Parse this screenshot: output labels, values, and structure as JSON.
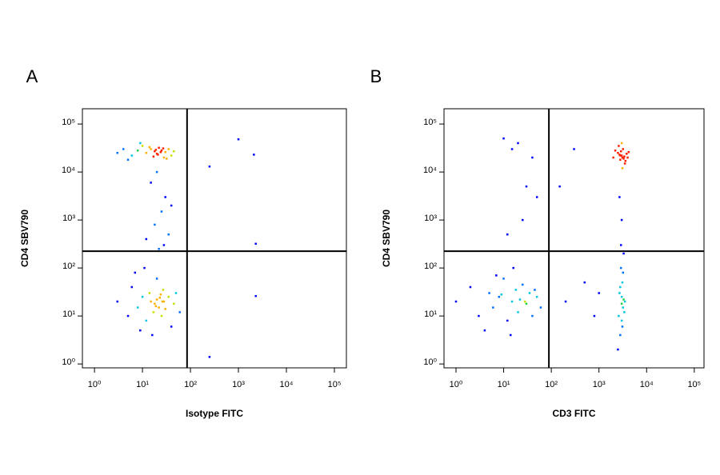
{
  "chart_data": [
    {
      "type": "scatter",
      "label": "A",
      "x_label": "Isotype FITC",
      "y_label": "CD4 SBV790",
      "log_x": true,
      "log_y": true,
      "xlim": [
        0.56,
        178000
      ],
      "ylim": [
        0.83,
        208000
      ],
      "xticks": [
        {
          "value": 1,
          "label": "10⁰"
        },
        {
          "value": 10,
          "label": "10¹"
        },
        {
          "value": 100,
          "label": "10²"
        },
        {
          "value": 1000,
          "label": "10³"
        },
        {
          "value": 10000,
          "label": "10⁴"
        },
        {
          "value": 100000,
          "label": "10⁵"
        }
      ],
      "yticks": [
        {
          "value": 1,
          "label": "10⁰"
        },
        {
          "value": 10,
          "label": "10¹"
        },
        {
          "value": 100,
          "label": "10²"
        },
        {
          "value": 1000,
          "label": "10³"
        },
        {
          "value": 10000,
          "label": "10⁴"
        },
        {
          "value": 100000,
          "label": "10⁵"
        }
      ],
      "gate_x": 85,
      "gate_y": 224,
      "x": [
        4,
        6,
        8,
        10,
        12,
        15,
        18,
        20,
        22,
        25,
        28,
        30,
        35,
        40,
        3,
        5,
        9,
        14,
        17,
        24,
        27,
        32,
        45,
        19,
        21,
        12,
        18,
        25,
        30,
        15,
        22,
        35,
        40,
        20,
        28,
        3,
        5,
        6,
        8,
        10,
        12,
        14,
        15,
        17,
        18,
        20,
        20,
        22,
        24,
        25,
        27,
        28,
        30,
        35,
        40,
        45,
        50,
        60,
        7,
        9,
        11,
        16,
        19,
        23,
        26,
        250,
        1000,
        2100,
        2300,
        2300,
        250
      ],
      "y": [
        30000,
        22000,
        28000,
        35000,
        25000,
        30000,
        27000,
        24000,
        32000,
        28000,
        20000,
        26000,
        30000,
        22000,
        25000,
        18000,
        40000,
        33000,
        21000,
        26000,
        31000,
        19000,
        27000,
        29000,
        23000,
        400,
        800,
        1500,
        3000,
        6000,
        250,
        500,
        2000,
        10000,
        300,
        20,
        10,
        40,
        15,
        25,
        8,
        30,
        20,
        12,
        18,
        22,
        60,
        15,
        28,
        10,
        35,
        20,
        14,
        25,
        6,
        18,
        30,
        12,
        80,
        5,
        100,
        4,
        16,
        24,
        20,
        13000,
        48000,
        23000,
        320,
        26,
        1.4
      ]
    },
    {
      "type": "scatter",
      "label": "B",
      "x_label": "CD3 FITC",
      "y_label": "CD4 SBV790",
      "log_x": true,
      "log_y": true,
      "xlim": [
        0.56,
        160000
      ],
      "ylim": [
        0.83,
        208000
      ],
      "xticks": [
        {
          "value": 1,
          "label": "10⁰"
        },
        {
          "value": 10,
          "label": "10¹"
        },
        {
          "value": 100,
          "label": "10²"
        },
        {
          "value": 1000,
          "label": "10³"
        },
        {
          "value": 10000,
          "label": "10⁴"
        },
        {
          "value": 100000,
          "label": "10⁵"
        }
      ],
      "yticks": [
        {
          "value": 1,
          "label": "10⁰"
        },
        {
          "value": 10,
          "label": "10¹"
        },
        {
          "value": 100,
          "label": "10²"
        },
        {
          "value": 1000,
          "label": "10³"
        },
        {
          "value": 10000,
          "label": "10⁴"
        },
        {
          "value": 100000,
          "label": "10⁵"
        }
      ],
      "gate_x": 89,
      "gate_y": 224,
      "x": [
        2000,
        2500,
        2800,
        3000,
        3200,
        3500,
        3800,
        4000,
        2600,
        3100,
        3300,
        2900,
        3400,
        2700,
        3600,
        2200,
        4200,
        3000,
        3100,
        2800,
        2500,
        2800,
        3000,
        3200,
        3500,
        2700,
        3100,
        2900,
        3300,
        2600,
        3000,
        3400,
        2800,
        3100,
        3000,
        3200,
        2900,
        3000,
        2700,
        3300,
        1,
        2,
        3,
        5,
        6,
        8,
        10,
        12,
        15,
        18,
        20,
        22,
        25,
        30,
        35,
        40,
        50,
        60,
        4,
        7,
        9,
        14,
        28,
        45,
        16,
        10,
        15,
        20,
        30,
        40,
        25,
        50,
        12,
        200,
        500,
        800,
        1000,
        300,
        150
      ],
      "y": [
        20000,
        25000,
        18000,
        22000,
        30000,
        15000,
        24000,
        20000,
        35000,
        12000,
        19000,
        27000,
        21000,
        23000,
        17000,
        28000,
        26000,
        40000,
        20000,
        22000,
        2,
        4,
        8,
        15,
        20,
        30,
        50,
        100,
        200,
        10,
        25,
        12,
        40,
        6,
        18,
        80,
        300,
        1000,
        3000,
        22,
        20,
        40,
        10,
        30,
        15,
        25,
        60,
        8,
        20,
        35,
        12,
        22,
        45,
        18,
        30,
        10,
        25,
        15,
        5,
        70,
        28,
        4,
        20,
        35,
        100,
        50000,
        30000,
        40000,
        5000,
        20000,
        1000,
        3000,
        500,
        20,
        50,
        10,
        30,
        30000,
        5000
      ]
    }
  ]
}
